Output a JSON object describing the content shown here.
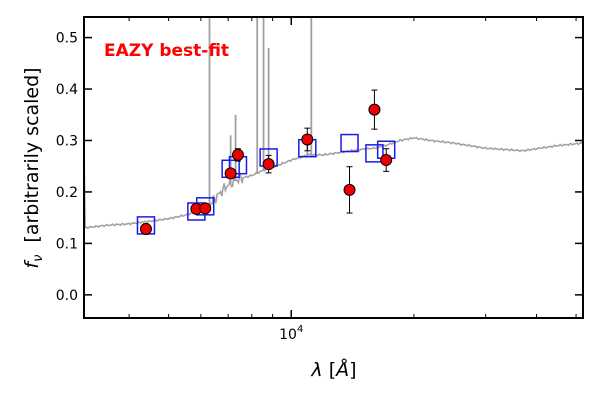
{
  "chart_data": {
    "type": "scatter",
    "annotation": "EAZY best-fit",
    "xlabel_symbol": "λ",
    "xlabel_unit": "Å",
    "ylabel_symbol": "f",
    "ylabel_sub": "ν",
    "ylabel_text": "[arbitrarily scaled]",
    "x_scale": "log",
    "xlim": [
      3100,
      52000
    ],
    "ylim": [
      -0.045,
      0.54
    ],
    "x_ticks": [
      {
        "value": 10000,
        "base": "10",
        "exp": "4"
      }
    ],
    "y_ticks": [
      0.0,
      0.1,
      0.2,
      0.3,
      0.4,
      0.5
    ],
    "grid": false,
    "colors": {
      "template": "#a0a0a0",
      "model": "#1a1aee",
      "observed_fill": "#ee0000",
      "observed_edge": "#000000",
      "annotation": "#ff0000"
    },
    "template_spectrum": {
      "continuum": [
        [
          3100,
          0.13
        ],
        [
          3500,
          0.135
        ],
        [
          4000,
          0.138
        ],
        [
          4500,
          0.143
        ],
        [
          5000,
          0.148
        ],
        [
          5500,
          0.155
        ],
        [
          5900,
          0.163
        ],
        [
          6300,
          0.175
        ],
        [
          6900,
          0.21
        ],
        [
          7400,
          0.225
        ],
        [
          8000,
          0.232
        ],
        [
          8600,
          0.243
        ],
        [
          9300,
          0.252
        ],
        [
          10000,
          0.262
        ],
        [
          11000,
          0.272
        ],
        [
          12000,
          0.272
        ],
        [
          13000,
          0.276
        ],
        [
          14000,
          0.28
        ],
        [
          15000,
          0.283
        ],
        [
          16000,
          0.285
        ],
        [
          17000,
          0.29
        ],
        [
          18500,
          0.3
        ],
        [
          20000,
          0.305
        ],
        [
          22000,
          0.3
        ],
        [
          25000,
          0.295
        ],
        [
          30000,
          0.285
        ],
        [
          37000,
          0.28
        ],
        [
          45000,
          0.29
        ],
        [
          52000,
          0.295
        ]
      ],
      "emission_lines": [
        {
          "x": 6300,
          "peak": 0.6
        },
        {
          "x": 7100,
          "peak": 0.31
        },
        {
          "x": 7300,
          "peak": 0.35
        },
        {
          "x": 8250,
          "peak": 0.6
        },
        {
          "x": 8550,
          "peak": 0.6
        },
        {
          "x": 8800,
          "peak": 0.48
        },
        {
          "x": 10950,
          "peak": 0.3
        },
        {
          "x": 11200,
          "peak": 0.6
        }
      ]
    },
    "series": [
      {
        "kind": "model",
        "marker": "open-square",
        "points": [
          {
            "x": 4400,
            "y": 0.135
          },
          {
            "x": 5850,
            "y": 0.162
          },
          {
            "x": 6150,
            "y": 0.172
          },
          {
            "x": 7100,
            "y": 0.245
          },
          {
            "x": 7400,
            "y": 0.252
          },
          {
            "x": 8800,
            "y": 0.267
          },
          {
            "x": 10950,
            "y": 0.285
          },
          {
            "x": 13900,
            "y": 0.295
          },
          {
            "x": 16000,
            "y": 0.275
          },
          {
            "x": 17100,
            "y": 0.282
          }
        ]
      },
      {
        "kind": "observed",
        "marker": "filled-circle",
        "points": [
          {
            "x": 4400,
            "y": 0.128,
            "err": 0.01
          },
          {
            "x": 5850,
            "y": 0.167,
            "err": 0.0
          },
          {
            "x": 6150,
            "y": 0.168,
            "err": 0.0
          },
          {
            "x": 7100,
            "y": 0.236,
            "err": 0.0
          },
          {
            "x": 7400,
            "y": 0.272,
            "err": 0.012
          },
          {
            "x": 8800,
            "y": 0.254,
            "err": 0.017
          },
          {
            "x": 10950,
            "y": 0.302,
            "err": 0.022
          },
          {
            "x": 13900,
            "y": 0.204,
            "err": 0.045
          },
          {
            "x": 16000,
            "y": 0.36,
            "err": 0.038
          },
          {
            "x": 17100,
            "y": 0.262,
            "err": 0.022
          }
        ]
      }
    ]
  }
}
